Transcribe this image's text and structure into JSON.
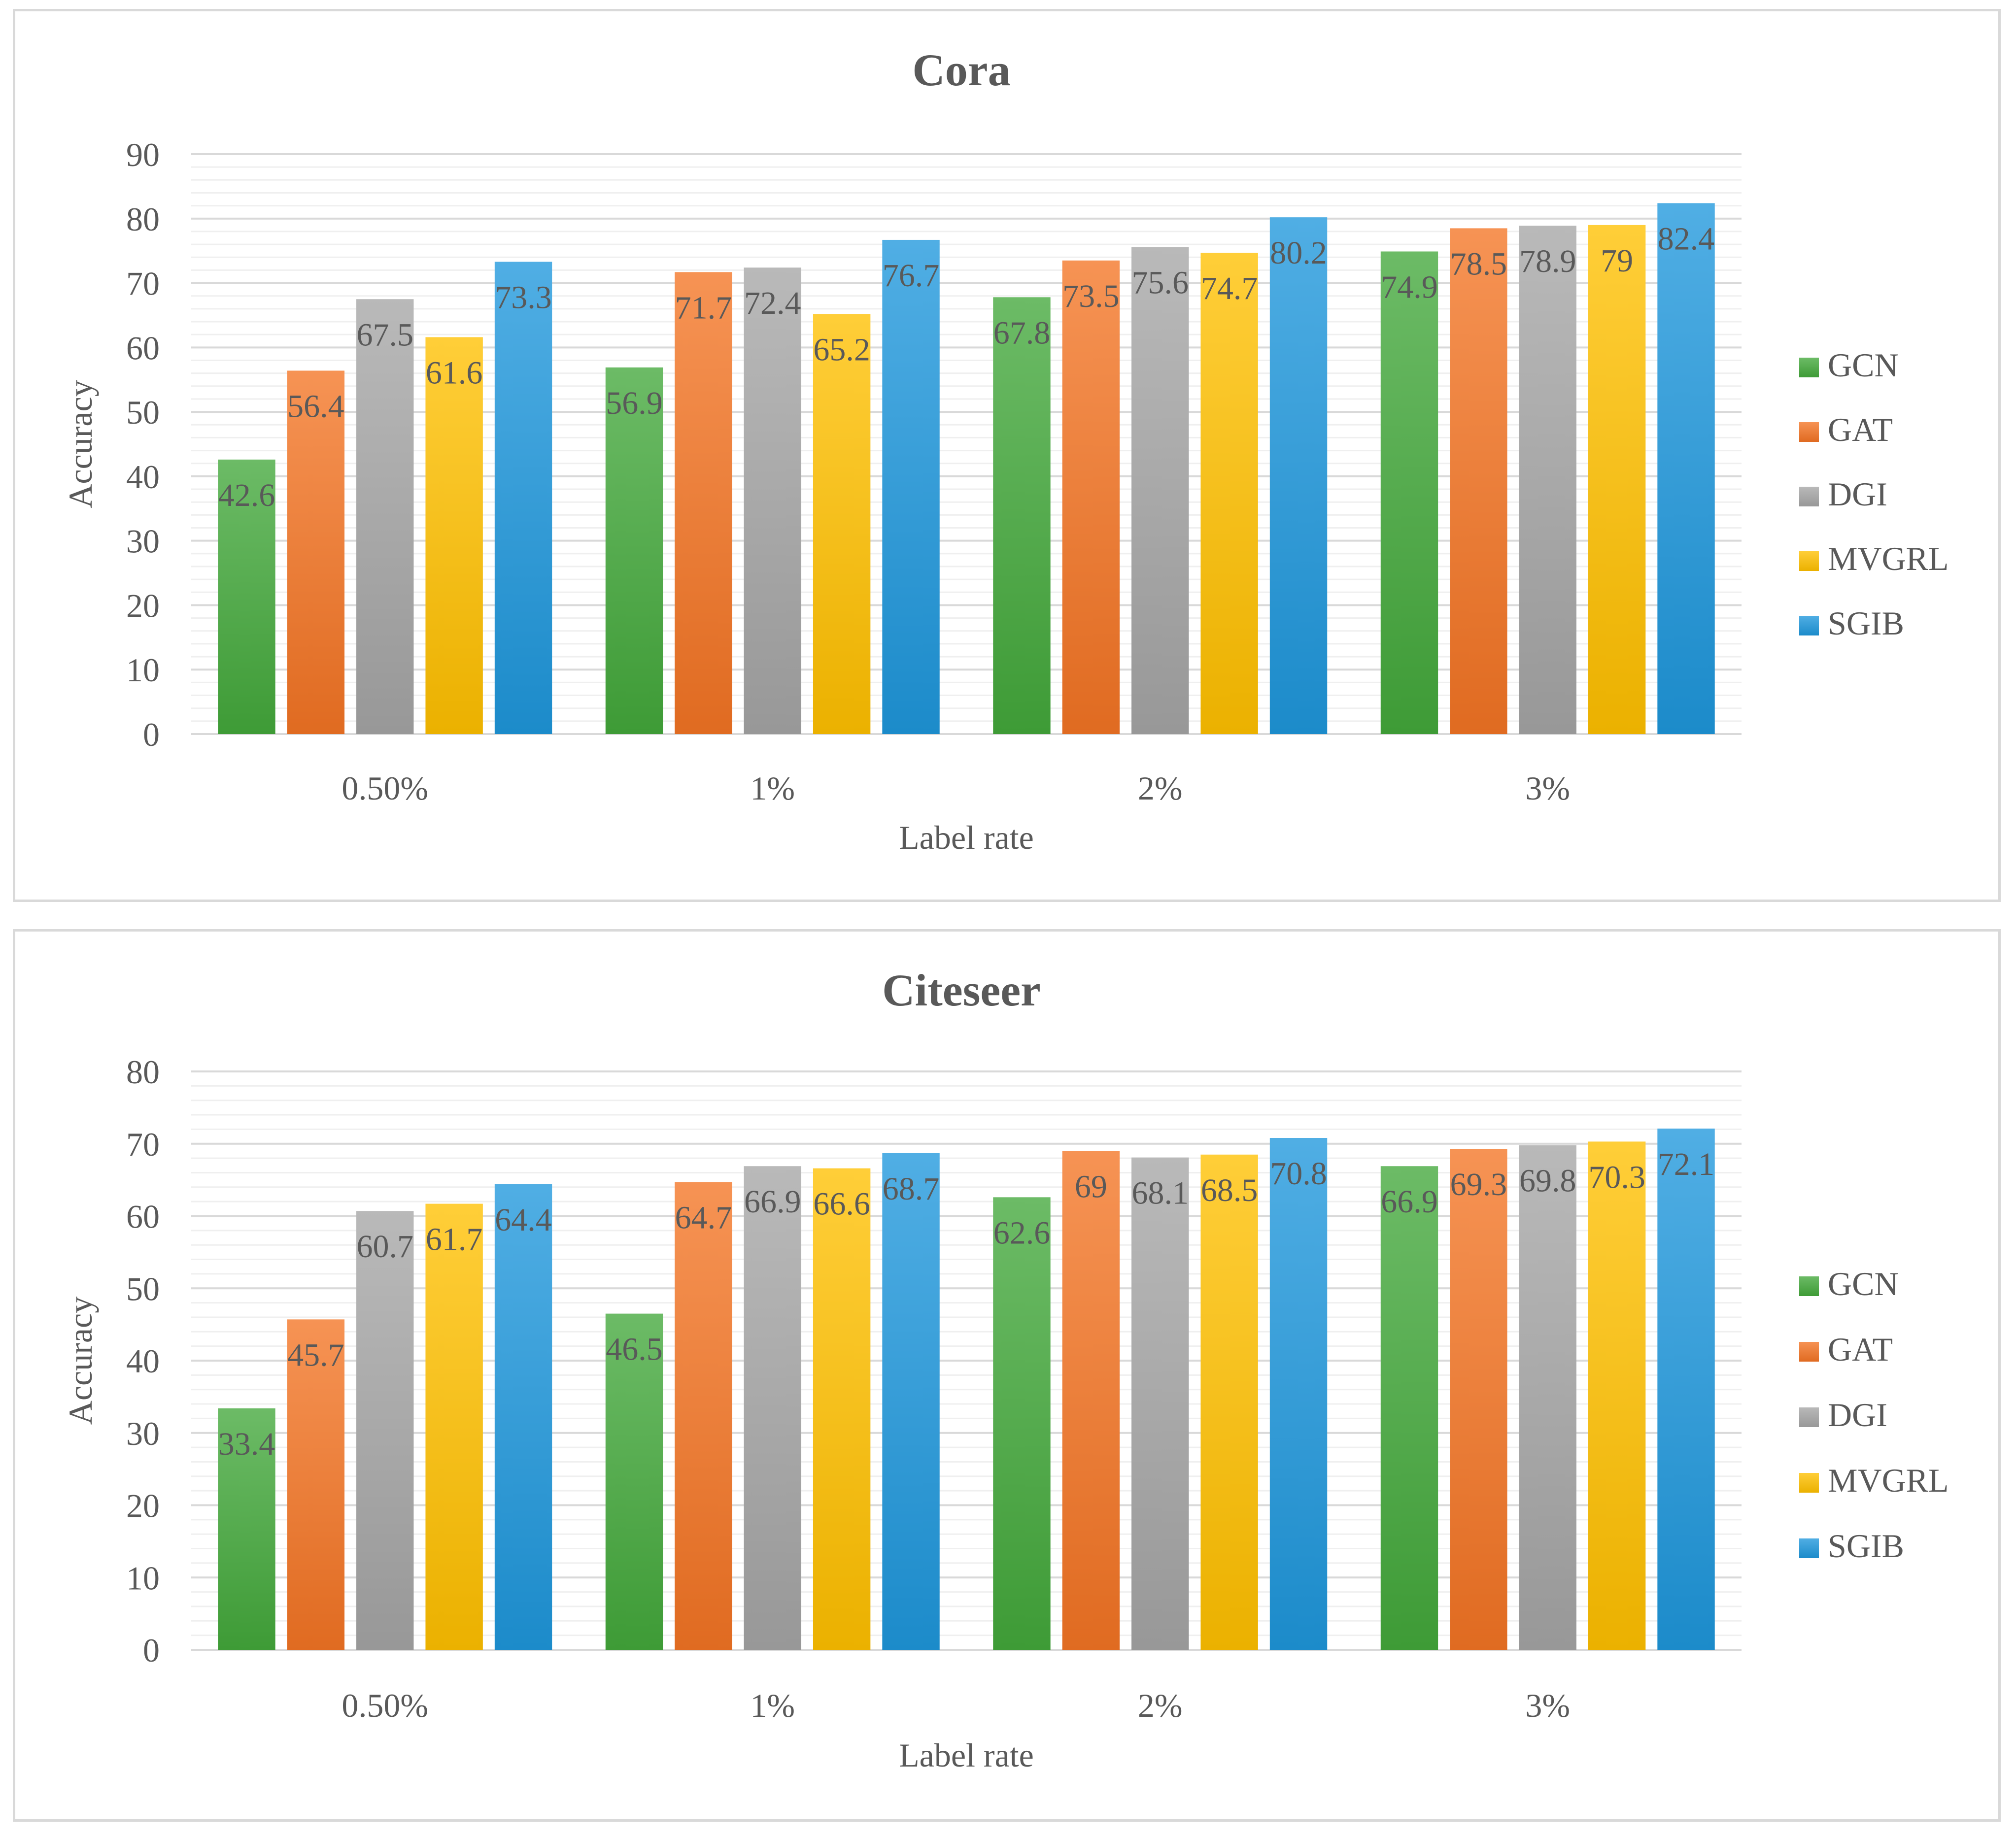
{
  "chart_data": [
    {
      "type": "bar",
      "title": "Cora",
      "xlabel": "Label rate",
      "ylabel": "Accuracy",
      "ylim": [
        0,
        90
      ],
      "ytick_step": 10,
      "categories": [
        "0.50%",
        "1%",
        "2%",
        "3%"
      ],
      "legend_position": "right",
      "series": [
        {
          "name": "GCN",
          "color": "#43a83b",
          "values": [
            42.6,
            56.9,
            67.8,
            74.9
          ],
          "labels": [
            "42.6",
            "56.9",
            "67.8",
            "74.9"
          ]
        },
        {
          "name": "GAT",
          "color": "#f47424",
          "values": [
            56.4,
            71.7,
            73.5,
            78.5
          ],
          "labels": [
            "56.4",
            "71.7",
            "73.5",
            "78.5"
          ]
        },
        {
          "name": "DGI",
          "color": "#a5a5a5",
          "values": [
            67.5,
            72.4,
            75.6,
            78.9
          ],
          "labels": [
            "67.5",
            "72.4",
            "75.6",
            "78.9"
          ]
        },
        {
          "name": "MVGRL",
          "color": "#ffc000",
          "values": [
            61.6,
            65.2,
            74.7,
            79
          ],
          "labels": [
            "61.6",
            "65.2",
            "74.7",
            "79"
          ]
        },
        {
          "name": "SGIB",
          "color": "#1e97dc",
          "values": [
            73.3,
            76.7,
            80.2,
            82.4
          ],
          "labels": [
            "73.3",
            "76.7",
            "80.2",
            "82.4"
          ]
        }
      ]
    },
    {
      "type": "bar",
      "title": "Citeseer",
      "xlabel": "Label rate",
      "ylabel": "Accuracy",
      "ylim": [
        0,
        80
      ],
      "ytick_step": 10,
      "categories": [
        "0.50%",
        "1%",
        "2%",
        "3%"
      ],
      "legend_position": "right",
      "series": [
        {
          "name": "GCN",
          "color": "#43a83b",
          "values": [
            33.4,
            46.5,
            62.6,
            66.9
          ],
          "labels": [
            "33.4",
            "46.5",
            "62.6",
            "66.9"
          ]
        },
        {
          "name": "GAT",
          "color": "#f47424",
          "values": [
            45.7,
            64.7,
            69,
            69.3
          ],
          "labels": [
            "45.7",
            "64.7",
            "69",
            "69.3"
          ]
        },
        {
          "name": "DGI",
          "color": "#a5a5a5",
          "values": [
            60.7,
            66.9,
            68.1,
            69.8
          ],
          "labels": [
            "60.7",
            "66.9",
            "68.1",
            "69.8"
          ]
        },
        {
          "name": "MVGRL",
          "color": "#ffc000",
          "values": [
            61.7,
            66.6,
            68.5,
            70.3
          ],
          "labels": [
            "61.7",
            "66.6",
            "68.5",
            "70.3"
          ]
        },
        {
          "name": "SGIB",
          "color": "#1e97dc",
          "values": [
            64.4,
            68.7,
            70.8,
            72.1
          ],
          "labels": [
            "64.4",
            "68.7",
            "70.8",
            "72.1"
          ]
        }
      ]
    }
  ]
}
